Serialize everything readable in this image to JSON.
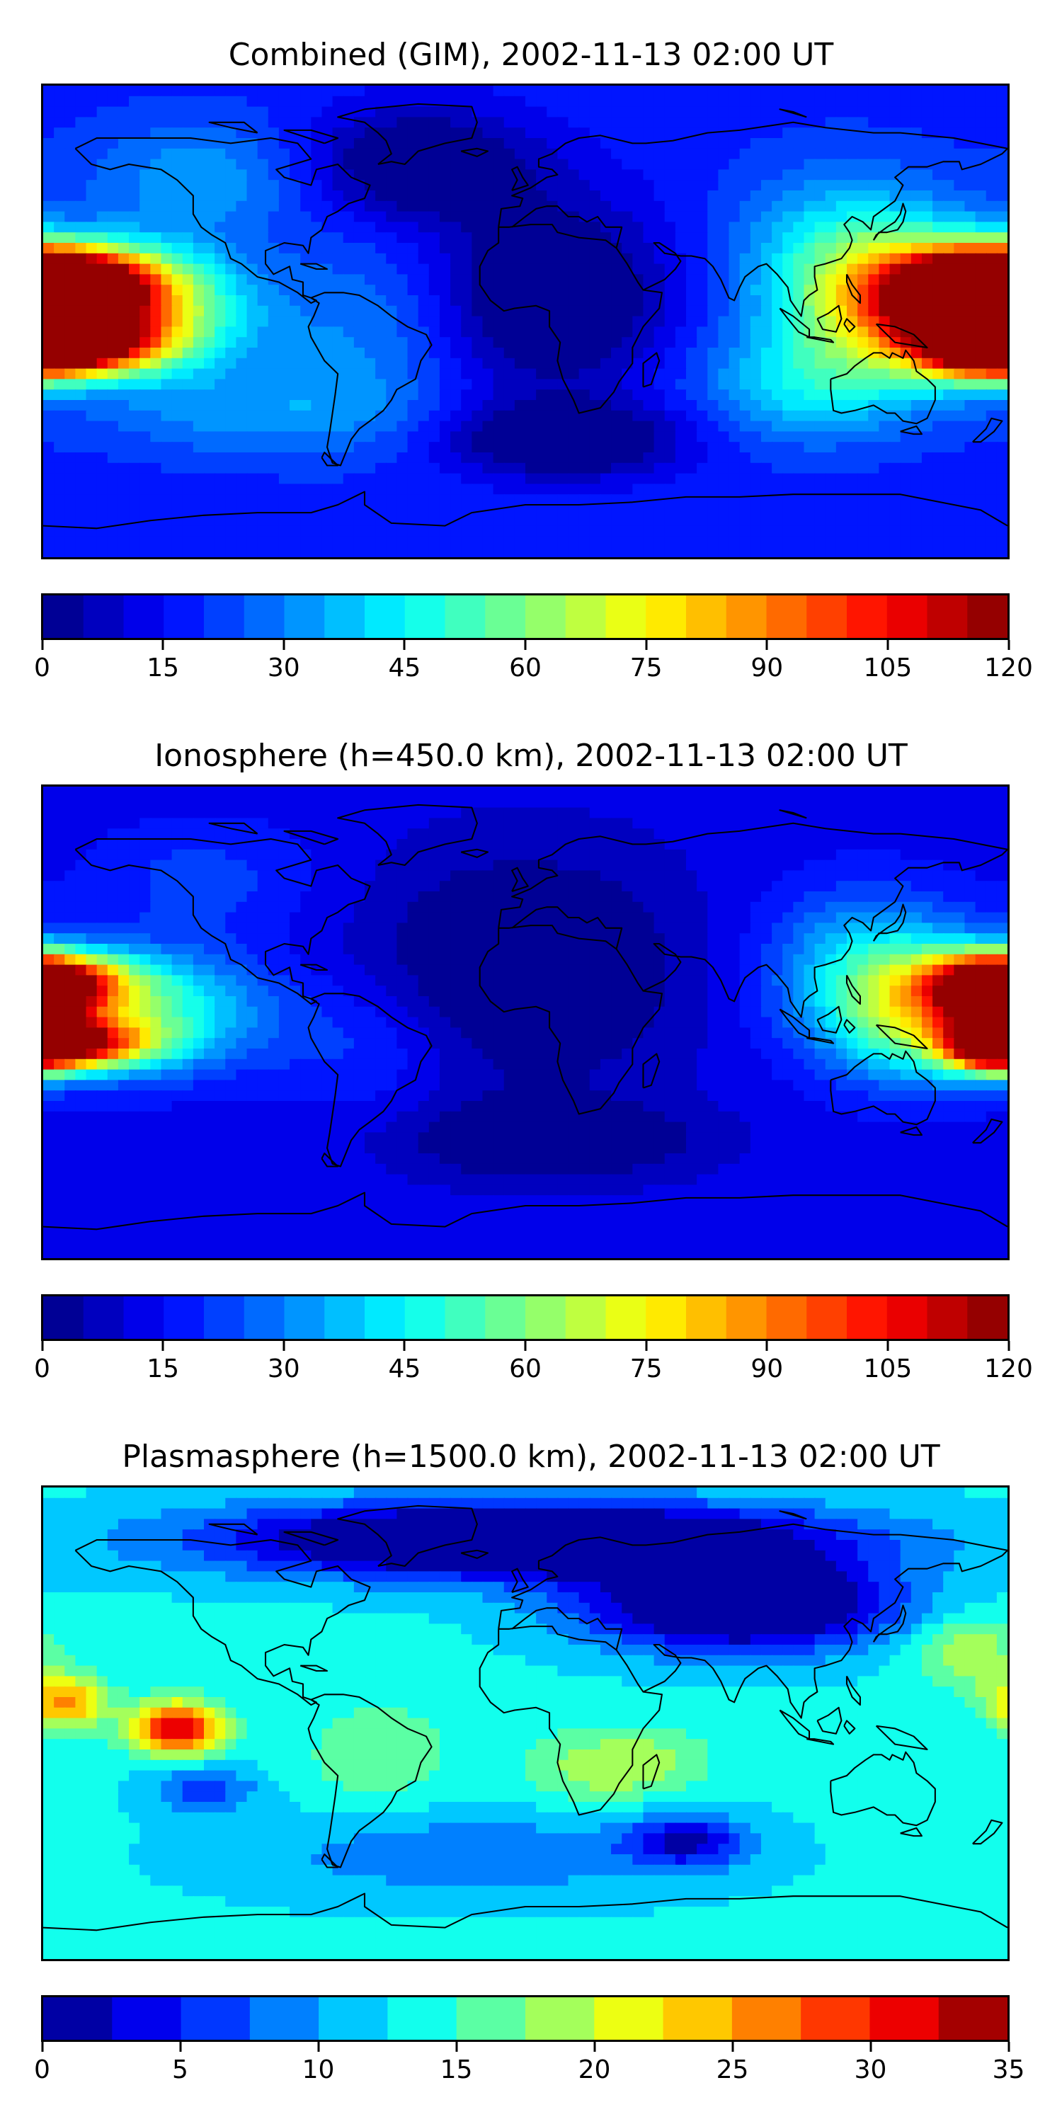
{
  "chart_data": [
    {
      "type": "heatmap",
      "title": "Combined (GIM), 2002-11-13 02:00 UT",
      "colormap": "jet",
      "colorbar": {
        "min": 0,
        "max": 120,
        "levels": 24,
        "ticks": [
          "0",
          "15",
          "30",
          "45",
          "60",
          "75",
          "90",
          "105",
          "120"
        ]
      },
      "background_value": 18,
      "features": [
        {
          "lon": -175,
          "lat": 15,
          "value": 118,
          "spread_lon": 24,
          "spread_lat": 9
        },
        {
          "lon": -170,
          "lat": -8,
          "value": 112,
          "spread_lon": 22,
          "spread_lat": 8
        },
        {
          "lon": -145,
          "lat": 4,
          "value": 72,
          "spread_lon": 28,
          "spread_lat": 16
        },
        {
          "lon": 172,
          "lat": 10,
          "value": 100,
          "spread_lon": 22,
          "spread_lat": 10
        },
        {
          "lon": 172,
          "lat": -8,
          "value": 112,
          "spread_lon": 16,
          "spread_lat": 8
        },
        {
          "lon": 150,
          "lat": 5,
          "value": 78,
          "spread_lon": 26,
          "spread_lat": 18
        },
        {
          "lon": 120,
          "lat": 20,
          "value": 50,
          "spread_lon": 28,
          "spread_lat": 24
        },
        {
          "lon": 105,
          "lat": -25,
          "value": 40,
          "spread_lon": 28,
          "spread_lat": 15
        },
        {
          "lon": -60,
          "lat": -5,
          "value": 30,
          "spread_lon": 25,
          "spread_lat": 25
        },
        {
          "lon": -120,
          "lat": 55,
          "value": 34,
          "spread_lon": 30,
          "spread_lat": 16
        },
        {
          "lon": -100,
          "lat": -35,
          "value": 32,
          "spread_lon": 40,
          "spread_lat": 12
        },
        {
          "lon": 10,
          "lat": 10,
          "value": -8,
          "spread_lon": 30,
          "spread_lat": 25
        },
        {
          "lon": 15,
          "lat": -45,
          "value": -8,
          "spread_lon": 30,
          "spread_lat": 10
        },
        {
          "lon": -40,
          "lat": 60,
          "value": -6,
          "spread_lon": 30,
          "spread_lat": 15
        }
      ]
    },
    {
      "type": "heatmap",
      "title": "Ionosphere  (h=450.0 km), 2002-11-13 02:00 UT",
      "colormap": "jet",
      "colorbar": {
        "min": 0,
        "max": 120,
        "levels": 24,
        "ticks": [
          "0",
          "15",
          "30",
          "45",
          "60",
          "75",
          "90",
          "105",
          "120"
        ]
      },
      "background_value": 12,
      "features": [
        {
          "lon": -175,
          "lat": 15,
          "value": 88,
          "spread_lon": 20,
          "spread_lat": 8
        },
        {
          "lon": -168,
          "lat": -8,
          "value": 92,
          "spread_lon": 20,
          "spread_lat": 7
        },
        {
          "lon": -140,
          "lat": 4,
          "value": 50,
          "spread_lon": 30,
          "spread_lat": 16
        },
        {
          "lon": 175,
          "lat": 12,
          "value": 92,
          "spread_lon": 14,
          "spread_lat": 8
        },
        {
          "lon": 175,
          "lat": -8,
          "value": 100,
          "spread_lon": 12,
          "spread_lat": 7
        },
        {
          "lon": 150,
          "lat": 5,
          "value": 62,
          "spread_lon": 24,
          "spread_lat": 18
        },
        {
          "lon": 125,
          "lat": 20,
          "value": 36,
          "spread_lon": 26,
          "spread_lat": 22
        },
        {
          "lon": -60,
          "lat": -8,
          "value": 22,
          "spread_lon": 25,
          "spread_lat": 18
        },
        {
          "lon": -120,
          "lat": 55,
          "value": 22,
          "spread_lon": 30,
          "spread_lat": 16
        },
        {
          "lon": 0,
          "lat": 20,
          "value": -6,
          "spread_lon": 40,
          "spread_lat": 30
        },
        {
          "lon": 10,
          "lat": -45,
          "value": -6,
          "spread_lon": 35,
          "spread_lat": 10
        }
      ]
    },
    {
      "type": "heatmap",
      "title": "Plasmasphere (h=1500.0 km), 2002-11-13 02:00 UT",
      "colormap": "jet",
      "colorbar": {
        "min": 0,
        "max": 35,
        "levels": 14,
        "ticks": [
          "0",
          "5",
          "10",
          "15",
          "20",
          "25",
          "30",
          "35"
        ]
      },
      "background_value": 13,
      "features": [
        {
          "lon": -130,
          "lat": -2,
          "value": 33,
          "spread_lon": 12,
          "spread_lat": 7
        },
        {
          "lon": -172,
          "lat": 8,
          "value": 26,
          "spread_lon": 11,
          "spread_lat": 7
        },
        {
          "lon": 165,
          "lat": 28,
          "value": 20,
          "spread_lon": 14,
          "spread_lat": 10
        },
        {
          "lon": 45,
          "lat": -15,
          "value": 18,
          "spread_lon": 18,
          "spread_lat": 10
        },
        {
          "lon": 20,
          "lat": -18,
          "value": 17,
          "spread_lon": 16,
          "spread_lat": 10
        },
        {
          "lon": -55,
          "lat": -12,
          "value": 17,
          "spread_lon": 20,
          "spread_lat": 15
        },
        {
          "lon": 0,
          "lat": 70,
          "value": -8,
          "spread_lon": 80,
          "spread_lat": 10
        },
        {
          "lon": 80,
          "lat": 45,
          "value": -6,
          "spread_lon": 40,
          "spread_lat": 12
        },
        {
          "lon": 60,
          "lat": -45,
          "value": 3,
          "spread_lon": 16,
          "spread_lat": 7
        },
        {
          "lon": -120,
          "lat": -25,
          "value": 6,
          "spread_lon": 14,
          "spread_lat": 6
        },
        {
          "lon": -20,
          "lat": -50,
          "value": 8,
          "spread_lon": 60,
          "spread_lat": 12
        }
      ]
    }
  ]
}
